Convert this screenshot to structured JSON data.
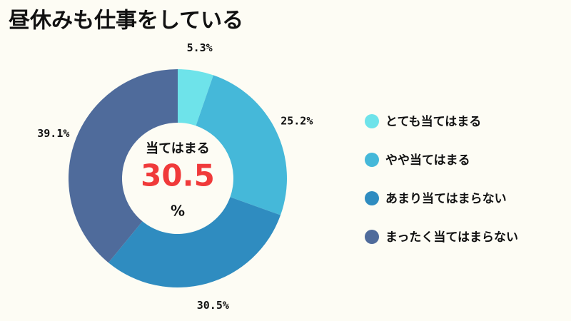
{
  "chart_data": {
    "type": "donut",
    "title": "昼休みも仕事をしている",
    "categories": [
      "とても当てはまる",
      "やや当てはまる",
      "あまり当てはまらない",
      "まったく当てはまらない"
    ],
    "values": [
      5.3,
      25.2,
      30.5,
      39.1
    ],
    "value_labels": [
      "5.3%",
      "25.2%",
      "30.5%",
      "39.1%"
    ],
    "colors": [
      "#6ee3ea",
      "#45b8d9",
      "#2f8cc0",
      "#4f6b9b"
    ],
    "center_label": "当てはまる",
    "center_value": 30.5,
    "center_unit": "%",
    "legend": "right"
  }
}
